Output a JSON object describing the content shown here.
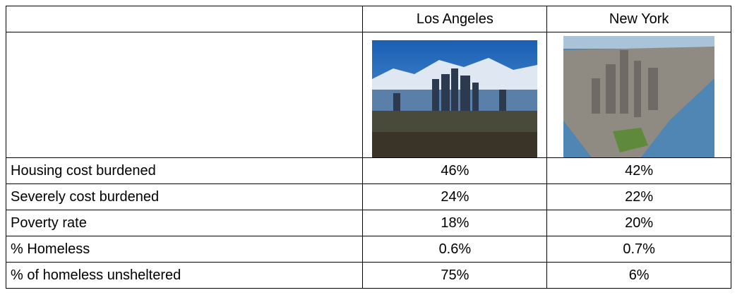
{
  "table": {
    "columns": [
      "Los Angeles",
      "New York"
    ],
    "rows": [
      [
        "Housing cost burdened",
        "46%",
        "42%"
      ],
      [
        "Severely cost burdened",
        "24%",
        "22%"
      ],
      [
        "Poverty rate",
        "18%",
        "20%"
      ],
      [
        "% Homeless",
        "0.6%",
        "0.7%"
      ],
      [
        "% of homeless unsheltered",
        "75%",
        "6%"
      ]
    ]
  }
}
